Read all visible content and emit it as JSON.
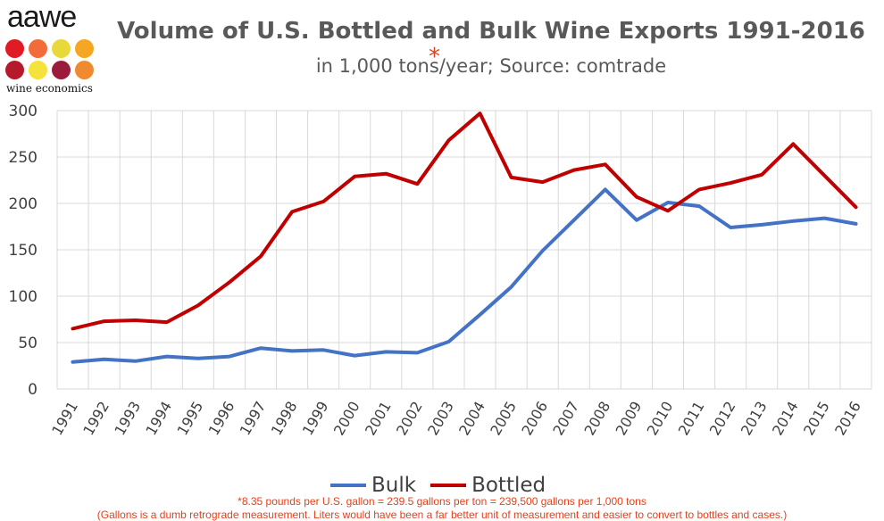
{
  "logo": {
    "wordmark": "aawe",
    "tagline": "wine economics",
    "dot_colors": [
      "#e01b24",
      "#f26b3a",
      "#e8d83a",
      "#f5a623",
      "#b51a2a",
      "#f5e23a",
      "#9b1b3a",
      "#f08a30"
    ]
  },
  "chart_data": {
    "type": "line",
    "title": "Volume of U.S. Bottled and Bulk Wine Exports 1991-2016",
    "subtitle": "in 1,000 tons/year; Source: comtrade",
    "asterisk": "*",
    "xlabel": "",
    "ylabel": "",
    "ylim": [
      0,
      300
    ],
    "yticks": [
      0,
      50,
      100,
      150,
      200,
      250,
      300
    ],
    "grid": true,
    "legend_position": "bottom",
    "categories": [
      "1991",
      "1992",
      "1993",
      "1994",
      "1995",
      "1996",
      "1997",
      "1998",
      "1999",
      "2000",
      "2001",
      "2002",
      "2003",
      "2004",
      "2005",
      "2006",
      "2007",
      "2008",
      "2009",
      "2010",
      "2011",
      "2012",
      "2013",
      "2014",
      "2015",
      "2016"
    ],
    "series": [
      {
        "name": "Bulk",
        "color": "#4472c4",
        "values": [
          29,
          32,
          30,
          35,
          33,
          35,
          44,
          41,
          42,
          36,
          40,
          39,
          51,
          80,
          110,
          149,
          182,
          215,
          182,
          201,
          197,
          174,
          177,
          181,
          184,
          178
        ]
      },
      {
        "name": "Bottled",
        "color": "#c00000",
        "values": [
          65,
          73,
          74,
          72,
          90,
          115,
          143,
          191,
          202,
          229,
          232,
          221,
          268,
          297,
          228,
          223,
          236,
          242,
          207,
          192,
          215,
          222,
          231,
          264,
          230,
          196
        ]
      }
    ]
  },
  "footnotes": {
    "line1": "*8.35 pounds per U.S. gallon = 239.5 gallons per ton = 239,500 gallons per 1,000 tons",
    "line2": "(Gallons is a dumb retrograde measurement. Liters would have been a far better unit of measurement and easier to convert to bottles and cases.)",
    "color": "#e8401c"
  }
}
